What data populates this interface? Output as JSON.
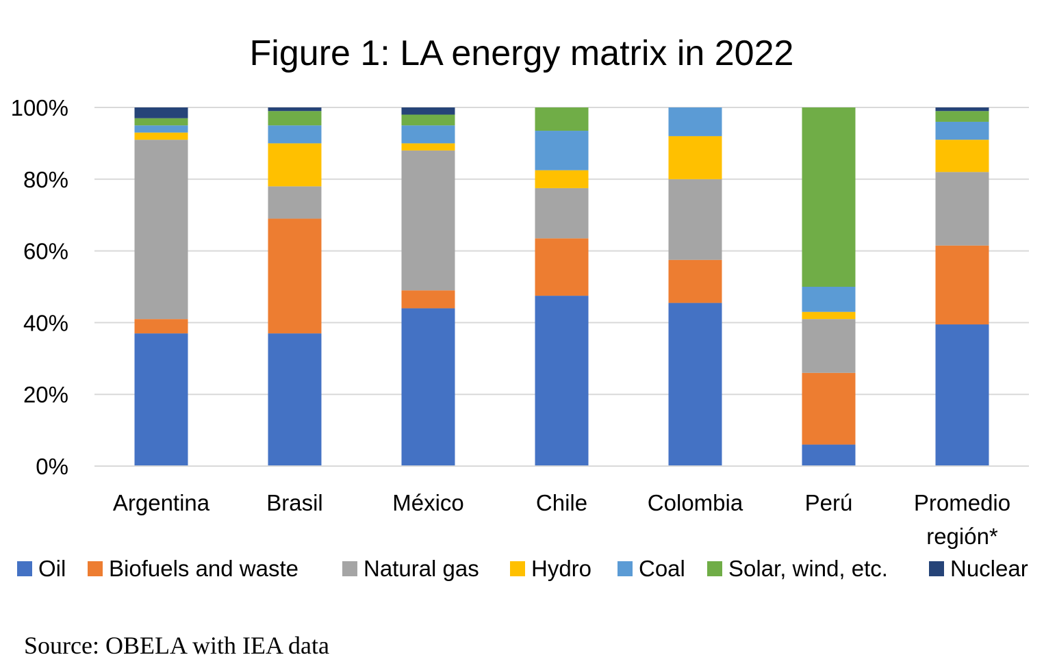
{
  "chart_data": {
    "type": "bar",
    "stacked": true,
    "percent_stacked": true,
    "title": "Figure 1: LA energy matrix in 2022",
    "categories": [
      "Argentina",
      "Brasil",
      "México",
      "Chile",
      "Colombia",
      "Perú",
      "Promedio región*"
    ],
    "yticks": [
      "0%",
      "20%",
      "40%",
      "60%",
      "80%",
      "100%"
    ],
    "ylim": [
      0,
      100
    ],
    "grid": true,
    "legend_position": "bottom",
    "series": [
      {
        "name": "Oil",
        "color": "#4472C4",
        "values": [
          37,
          37,
          44,
          47.5,
          45.5,
          6,
          39.5
        ]
      },
      {
        "name": "Biofuels and waste",
        "color": "#ED7D31",
        "values": [
          4,
          32,
          5,
          16,
          12,
          20,
          22
        ]
      },
      {
        "name": "Natural gas",
        "color": "#A5A5A5",
        "values": [
          50,
          9,
          39,
          14,
          22.5,
          15,
          20.5
        ]
      },
      {
        "name": "Hydro",
        "color": "#FFC000",
        "values": [
          2,
          12,
          2,
          5,
          12,
          2,
          9
        ]
      },
      {
        "name": "Coal",
        "color": "#5B9BD5",
        "values": [
          2,
          5,
          5,
          11,
          8,
          7,
          5
        ]
      },
      {
        "name": "Solar, wind, etc.",
        "color": "#70AD47",
        "values": [
          2,
          4,
          3,
          6.5,
          0,
          50,
          3
        ]
      },
      {
        "name": "Nuclear",
        "color": "#264478",
        "values": [
          3,
          1,
          2,
          0,
          0,
          0,
          1
        ]
      }
    ],
    "source": "Source: OBELA with IEA data"
  }
}
